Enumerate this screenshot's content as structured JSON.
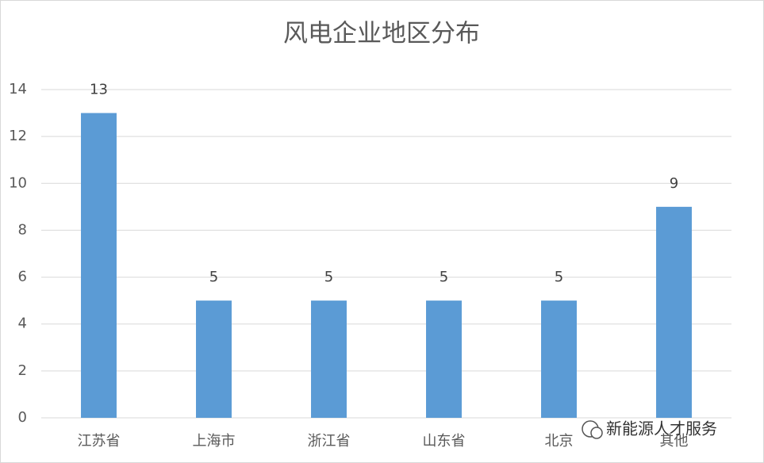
{
  "chart_data": {
    "type": "bar",
    "title": "风电企业地区分布",
    "categories": [
      "江苏省",
      "上海市",
      "浙江省",
      "山东省",
      "北京",
      "其他"
    ],
    "values": [
      13,
      5,
      5,
      5,
      5,
      9
    ],
    "color": "#5b9bd5",
    "ylim": [
      0,
      14
    ],
    "yticks": [
      0,
      2,
      4,
      6,
      8,
      10,
      12,
      14
    ],
    "grid": true,
    "data_labels": true
  },
  "watermark": "新能源人才服务"
}
